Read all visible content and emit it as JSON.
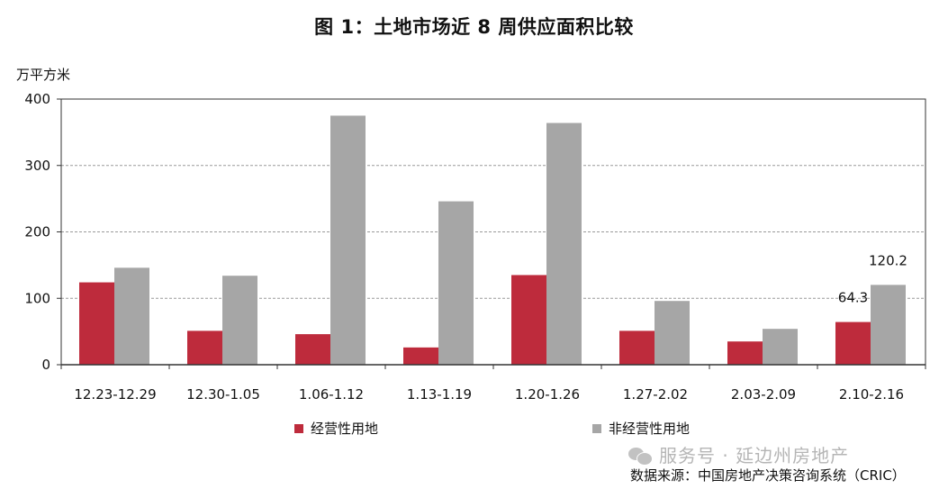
{
  "title": "图 1：土地市场近 8 周供应面积比较",
  "y_unit": "万平方米",
  "source": "数据来源：中国房地产决策咨询系统（CRIC）",
  "watermark": "服务号 · 延边州房地产",
  "colors": {
    "series1": "#be2b3c",
    "series2": "#a6a6a6",
    "grid": "#9a9a9a",
    "axis": "#333333"
  },
  "chart_data": {
    "type": "bar",
    "title": "图 1：土地市场近 8 周供应面积比较",
    "ylabel": "万平方米",
    "xlabel": "",
    "ylim": [
      0,
      400
    ],
    "yticks": [
      0,
      100,
      200,
      300,
      400
    ],
    "grid": true,
    "legend_position": "bottom",
    "categories": [
      "12.23-12.29",
      "12.30-1.05",
      "1.06-1.12",
      "1.13-1.19",
      "1.20-1.26",
      "1.27-2.02",
      "2.03-2.09",
      "2.10-2.16"
    ],
    "series": [
      {
        "name": "经营性用地",
        "values": [
          124,
          51,
          46,
          26,
          135,
          51,
          35,
          64.3
        ]
      },
      {
        "name": "非经营性用地",
        "values": [
          146,
          134,
          375,
          246,
          364,
          96,
          54,
          120.2
        ]
      }
    ],
    "data_labels": [
      {
        "series": 0,
        "index": 7,
        "text": "64.3"
      },
      {
        "series": 1,
        "index": 7,
        "text": "120.2"
      }
    ]
  }
}
